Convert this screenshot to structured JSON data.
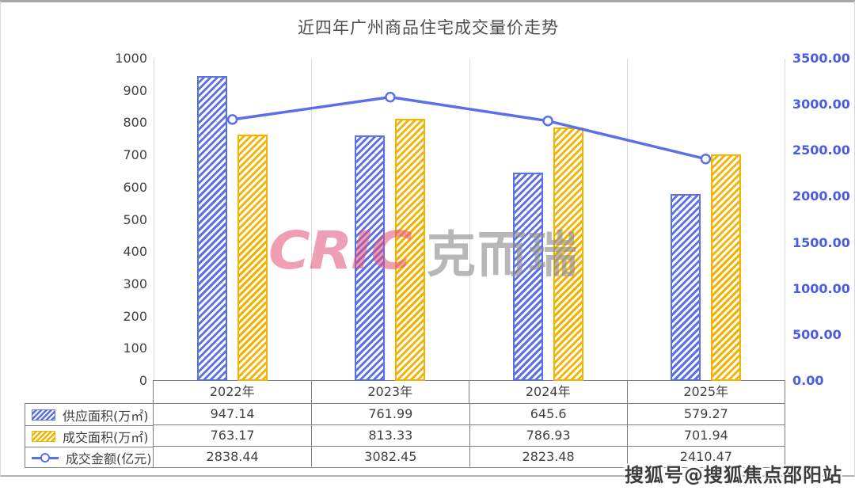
{
  "title": "近四年广州商品住宅成交量价走势",
  "chart_data": {
    "type": "combo",
    "categories": [
      "2022年",
      "2023年",
      "2024年",
      "2025年"
    ],
    "series": [
      {
        "key": "supply-area",
        "name": "供应面积(万㎡)",
        "type": "bar",
        "axis": "left",
        "color": "#5b6fe8",
        "values": [
          947.14,
          761.99,
          645.6,
          579.27
        ]
      },
      {
        "key": "deal-area",
        "name": "成交面积(万㎡)",
        "type": "bar",
        "axis": "left",
        "color": "#f2b300",
        "values": [
          763.17,
          813.33,
          786.93,
          701.94
        ]
      },
      {
        "key": "deal-amount",
        "name": "成交金额(亿元)",
        "type": "line",
        "axis": "right",
        "color": "#5b6fe8",
        "values": [
          2838.44,
          3082.45,
          2823.48,
          2410.47
        ]
      }
    ],
    "left_axis": {
      "min": 0,
      "max": 1000,
      "step": 100,
      "decimals": 0
    },
    "right_axis": {
      "min": 0,
      "max": 3500,
      "step": 500,
      "decimals": 2
    },
    "grid": "vertical category separators only, no horizontal gridlines",
    "legend_position": "table rows below chart (left column)"
  },
  "watermarks": {
    "center_logo_en": "CRIC",
    "center_logo_cn": "克而瑞",
    "bottom_right": "搜狐号@搜狐焦点邵阳站"
  },
  "colors": {
    "supply_bar": "#5b6fe8",
    "deal_bar": "#f2b300",
    "line": "#5b6fe8",
    "left_axis_text": "#404040",
    "right_axis_text": "#4a5ce0",
    "gridline": "#dcdcdc",
    "table_border": "#7f7f7f",
    "logo_red": "#e35177",
    "logo_gray": "#8c8c8c"
  }
}
